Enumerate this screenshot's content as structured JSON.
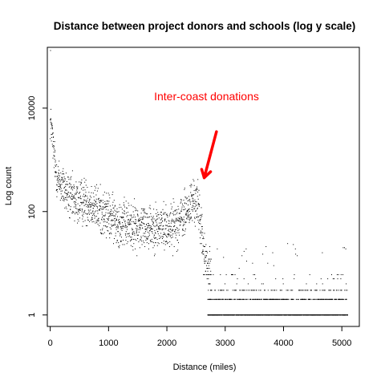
{
  "chart_data": {
    "type": "scatter",
    "title": "Distance between project donors and schools (log y scale)",
    "xlabel": "Distance (miles)",
    "ylabel": "Log count",
    "xlim": [
      -50,
      5300
    ],
    "ylim": [
      0.6,
      150000
    ],
    "y_scale": "log",
    "grid": false,
    "legend": "none",
    "x_ticks": [
      0,
      1000,
      2000,
      3000,
      4000,
      5000
    ],
    "x_tick_labels": [
      "0",
      "1000",
      "2000",
      "3000",
      "4000",
      "5000"
    ],
    "y_ticks": [
      1,
      100,
      10000
    ],
    "y_tick_labels": [
      "1",
      "100",
      "10000"
    ],
    "point_color": "#000000",
    "annotation": {
      "text": "Inter-coast donations",
      "color": "#ff0000",
      "text_x": 2680,
      "text_y": 17000,
      "arrow_from": [
        2850,
        3500
      ],
      "arrow_to": [
        2640,
        450
      ]
    },
    "highlight_points": [
      {
        "x": 5,
        "y": 130000
      }
    ],
    "trend": [
      [
        0,
        5500
      ],
      [
        20,
        4200
      ],
      [
        40,
        2500
      ],
      [
        60,
        1400
      ],
      [
        80,
        900
      ],
      [
        100,
        560
      ],
      [
        130,
        430
      ],
      [
        160,
        360
      ],
      [
        200,
        330
      ],
      [
        250,
        270
      ],
      [
        300,
        210
      ],
      [
        350,
        180
      ],
      [
        400,
        160
      ],
      [
        450,
        150
      ],
      [
        500,
        150
      ],
      [
        550,
        155
      ],
      [
        600,
        160
      ],
      [
        650,
        150
      ],
      [
        700,
        145
      ],
      [
        750,
        130
      ],
      [
        800,
        115
      ],
      [
        900,
        95
      ],
      [
        1000,
        80
      ],
      [
        1100,
        70
      ],
      [
        1200,
        62
      ],
      [
        1300,
        56
      ],
      [
        1400,
        52
      ],
      [
        1500,
        50
      ],
      [
        1600,
        52
      ],
      [
        1700,
        55
      ],
      [
        1800,
        50
      ],
      [
        1900,
        50
      ],
      [
        2000,
        50
      ],
      [
        2100,
        55
      ],
      [
        2200,
        65
      ],
      [
        2300,
        85
      ],
      [
        2400,
        125
      ],
      [
        2450,
        160
      ],
      [
        2500,
        150
      ],
      [
        2550,
        110
      ],
      [
        2600,
        40
      ],
      [
        2620,
        20
      ],
      [
        2650,
        12
      ],
      [
        2700,
        8
      ],
      [
        2750,
        5
      ]
    ],
    "upper_range": [
      2700,
      5100
    ],
    "lower_counts": [
      1,
      2,
      3,
      4,
      5,
      6,
      8,
      10,
      14,
      20,
      30
    ]
  }
}
